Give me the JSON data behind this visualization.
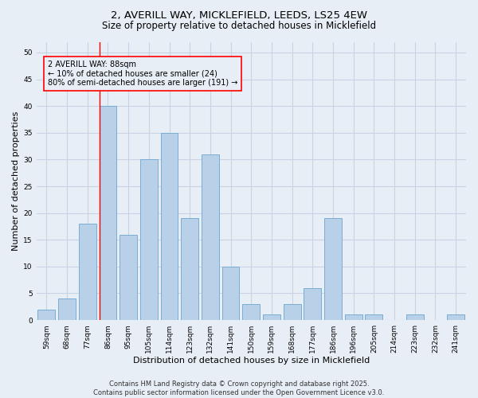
{
  "title_line1": "2, AVERILL WAY, MICKLEFIELD, LEEDS, LS25 4EW",
  "title_line2": "Size of property relative to detached houses in Micklefield",
  "xlabel": "Distribution of detached houses by size in Micklefield",
  "ylabel": "Number of detached properties",
  "categories": [
    "59sqm",
    "68sqm",
    "77sqm",
    "86sqm",
    "95sqm",
    "105sqm",
    "114sqm",
    "123sqm",
    "132sqm",
    "141sqm",
    "150sqm",
    "159sqm",
    "168sqm",
    "177sqm",
    "186sqm",
    "196sqm",
    "205sqm",
    "214sqm",
    "223sqm",
    "232sqm",
    "241sqm"
  ],
  "values": [
    2,
    4,
    18,
    40,
    16,
    30,
    35,
    19,
    31,
    10,
    3,
    1,
    3,
    6,
    19,
    1,
    1,
    0,
    1,
    0,
    1
  ],
  "bar_color": "#b8d0e8",
  "bar_edge_color": "#7aadd4",
  "grid_color": "#c8d4e4",
  "background_color": "#e8eef6",
  "red_line_index": 3,
  "annotation_box_text": "2 AVERILL WAY: 88sqm\n← 10% of detached houses are smaller (24)\n80% of semi-detached houses are larger (191) →",
  "ylim": [
    0,
    52
  ],
  "yticks": [
    0,
    5,
    10,
    15,
    20,
    25,
    30,
    35,
    40,
    45,
    50
  ],
  "footnote": "Contains HM Land Registry data © Crown copyright and database right 2025.\nContains public sector information licensed under the Open Government Licence v3.0.",
  "title_fontsize": 9.5,
  "subtitle_fontsize": 8.5,
  "axis_label_fontsize": 8,
  "tick_fontsize": 6.5,
  "annotation_fontsize": 7,
  "footnote_fontsize": 6
}
